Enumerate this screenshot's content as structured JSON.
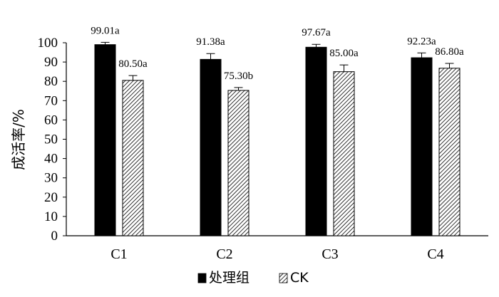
{
  "chart_data": {
    "type": "bar",
    "categories": [
      "C1",
      "C2",
      "C3",
      "C4"
    ],
    "series": [
      {
        "name": "处理组",
        "color": "#000000",
        "pattern": "solid",
        "values": [
          99.01,
          91.38,
          97.67,
          92.23
        ],
        "errors": [
          1.2,
          3.0,
          1.5,
          2.5
        ],
        "labels": [
          "99.01a",
          "91.38a",
          "97.67a",
          "92.23a"
        ]
      },
      {
        "name": "CK",
        "color": "#000000",
        "pattern": "diagonal-hatch",
        "values": [
          80.5,
          75.3,
          85.0,
          86.8
        ],
        "errors": [
          2.5,
          1.5,
          3.5,
          2.5
        ],
        "labels": [
          "80.50a",
          "75.30b",
          "85.00a",
          "86.80a"
        ]
      }
    ],
    "title": "",
    "xlabel": "",
    "ylabel": "成活率/%",
    "ylim": [
      0,
      100
    ],
    "yticks": [
      0,
      10,
      20,
      30,
      40,
      50,
      60,
      70,
      80,
      90,
      100
    ],
    "grid": false,
    "legend": "bottom"
  }
}
